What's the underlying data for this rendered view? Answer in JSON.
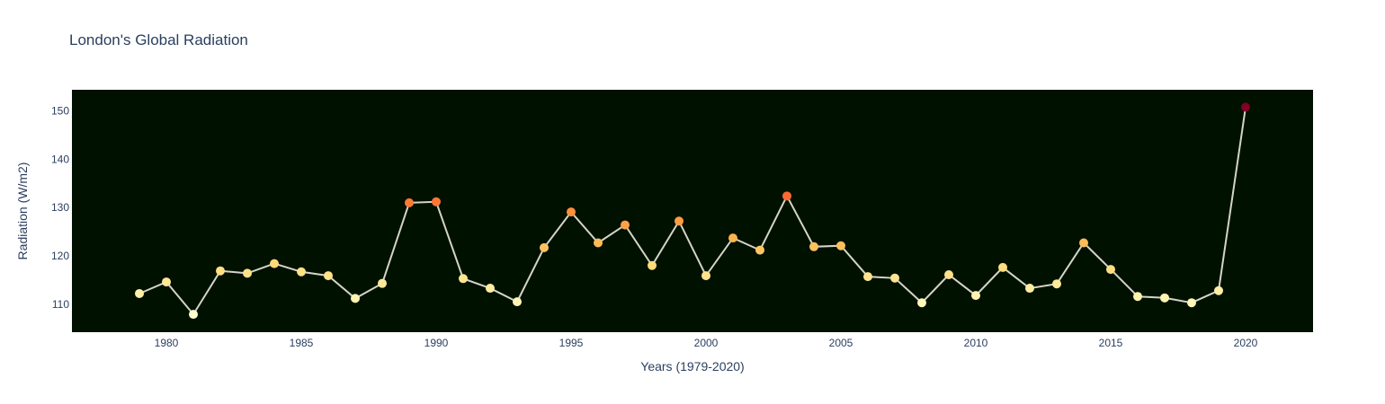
{
  "chart_data": {
    "type": "line",
    "title": "London's Global Radiation",
    "xlabel": "Years (1979-2020)",
    "ylabel": "Radiation (W/m2)",
    "xlim": [
      1976.5,
      2022.5
    ],
    "ylim": [
      104.2,
      154.4
    ],
    "x_ticks": [
      1980,
      1985,
      1990,
      1995,
      2000,
      2005,
      2010,
      2015,
      2020
    ],
    "y_ticks": [
      110,
      120,
      130,
      140,
      150
    ],
    "grid": false,
    "plot_background": "#001100",
    "line_color": "#d4d4c8",
    "colorscale": [
      "#ffffcc",
      "#ffeda0",
      "#fed976",
      "#feb24c",
      "#fd8d3c",
      "#fc4e2a",
      "#e31a1c",
      "#bd0026",
      "#800026"
    ],
    "x": [
      1979,
      1980,
      1981,
      1982,
      1983,
      1984,
      1985,
      1986,
      1987,
      1988,
      1989,
      1990,
      1991,
      1992,
      1993,
      1994,
      1995,
      1996,
      1997,
      1998,
      1999,
      2000,
      2001,
      2002,
      2003,
      2004,
      2005,
      2006,
      2007,
      2008,
      2009,
      2010,
      2011,
      2012,
      2013,
      2014,
      2015,
      2016,
      2017,
      2018,
      2019,
      2020
    ],
    "y": [
      112.2,
      114.6,
      107.9,
      116.9,
      116.4,
      118.4,
      116.7,
      115.9,
      111.2,
      114.3,
      131.0,
      131.2,
      115.3,
      113.3,
      110.5,
      121.7,
      129.1,
      122.7,
      126.4,
      118.0,
      127.2,
      115.9,
      123.7,
      121.2,
      132.4,
      121.9,
      122.1,
      115.7,
      115.4,
      110.3,
      116.1,
      111.8,
      117.6,
      113.3,
      114.2,
      122.7,
      117.2,
      111.6,
      111.3,
      110.3,
      112.8,
      150.8
    ]
  }
}
